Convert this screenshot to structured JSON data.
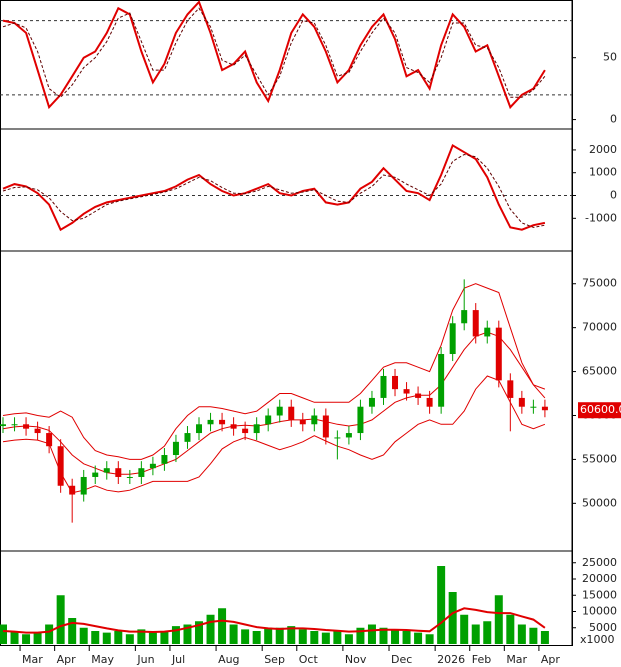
{
  "chart_data": [
    {
      "type": "line",
      "ylim": [
        -6,
        95
      ],
      "yticks": [
        0,
        50
      ],
      "levels": [
        20,
        80
      ],
      "series": [
        {
          "color": "#e00000",
          "values": [
            80,
            78,
            70,
            40,
            10,
            20,
            35,
            50,
            55,
            70,
            90,
            85,
            55,
            30,
            45,
            70,
            85,
            95,
            70,
            40,
            45,
            55,
            30,
            15,
            40,
            70,
            85,
            75,
            55,
            30,
            40,
            60,
            75,
            85,
            65,
            35,
            40,
            25,
            60,
            85,
            75,
            55,
            60,
            35,
            10,
            20,
            25,
            40
          ]
        },
        {
          "color": "#600000",
          "dash": true,
          "values": [
            75,
            78,
            74,
            55,
            25,
            18,
            28,
            42,
            50,
            63,
            82,
            86,
            63,
            40,
            40,
            62,
            80,
            90,
            75,
            48,
            44,
            52,
            36,
            20,
            35,
            62,
            80,
            78,
            60,
            35,
            38,
            55,
            70,
            82,
            70,
            42,
            38,
            30,
            50,
            78,
            78,
            60,
            58,
            42,
            18,
            18,
            24,
            35
          ]
        }
      ]
    },
    {
      "type": "line",
      "ylim": [
        -2390,
        2830
      ],
      "yticks": [
        -1000,
        0,
        1000,
        2000
      ],
      "levels": [
        0
      ],
      "series": [
        {
          "color": "#e00000",
          "values": [
            300,
            500,
            400,
            100,
            -400,
            -1500,
            -1200,
            -800,
            -500,
            -300,
            -200,
            -100,
            0,
            100,
            200,
            400,
            700,
            900,
            500,
            200,
            0,
            100,
            300,
            500,
            100,
            0,
            200,
            300,
            -300,
            -400,
            -300,
            300,
            600,
            1200,
            700,
            200,
            100,
            -200,
            900,
            2200,
            1900,
            1600,
            800,
            -400,
            -1400,
            -1500,
            -1300,
            -1200
          ]
        },
        {
          "color": "#600000",
          "dash": true,
          "values": [
            200,
            350,
            380,
            250,
            -100,
            -700,
            -1100,
            -1000,
            -700,
            -400,
            -250,
            -150,
            -50,
            50,
            150,
            300,
            550,
            800,
            650,
            350,
            100,
            80,
            200,
            400,
            250,
            100,
            150,
            250,
            0,
            -250,
            -300,
            100,
            400,
            900,
            800,
            500,
            250,
            0,
            500,
            1500,
            1800,
            1700,
            1200,
            400,
            -600,
            -1200,
            -1400,
            -1300
          ]
        }
      ]
    },
    {
      "type": "candlestick",
      "ylim": [
        44800,
        78500
      ],
      "yticks": [
        50000,
        55000,
        60000,
        65000,
        70000,
        75000
      ],
      "up_color": "#00a000",
      "down_color": "#e00000",
      "open": [
        58800,
        59000,
        59000,
        58500,
        58000,
        56500,
        52000,
        51000,
        53000,
        53500,
        54000,
        53000,
        53000,
        54000,
        54500,
        55500,
        57000,
        58000,
        59000,
        59500,
        59000,
        58500,
        58000,
        59000,
        60000,
        61000,
        59500,
        59000,
        60000,
        57500,
        57500,
        58000,
        61000,
        62000,
        64500,
        63000,
        62500,
        62000,
        61000,
        67000,
        70500,
        72000,
        69000,
        70000,
        64000,
        62000,
        61000,
        61000
      ],
      "high": [
        59800,
        59800,
        59800,
        59300,
        58800,
        57300,
        52800,
        53800,
        54300,
        54800,
        54800,
        53800,
        54800,
        55300,
        56300,
        57800,
        58800,
        59800,
        60300,
        60300,
        59800,
        59300,
        59800,
        60800,
        61800,
        61800,
        60300,
        60800,
        60800,
        58300,
        58800,
        61800,
        62800,
        65300,
        65300,
        63800,
        63300,
        62800,
        67800,
        71300,
        75500,
        72800,
        70800,
        70800,
        64800,
        62800,
        61800,
        61800
      ],
      "low": [
        58000,
        58200,
        57700,
        57200,
        55700,
        51200,
        47800,
        50200,
        52200,
        52700,
        52200,
        52200,
        52200,
        53200,
        53700,
        54700,
        56200,
        57200,
        58200,
        58200,
        57700,
        57200,
        57200,
        58200,
        59200,
        58700,
        58200,
        58200,
        56700,
        55000,
        56700,
        57200,
        60200,
        61200,
        62200,
        61700,
        61200,
        60200,
        60200,
        66200,
        69700,
        68200,
        68200,
        63200,
        58200,
        60200,
        60200,
        59800
      ],
      "close": [
        59000,
        59000,
        58500,
        58000,
        56500,
        52000,
        51000,
        53000,
        53500,
        54000,
        53000,
        53000,
        54000,
        54500,
        55500,
        57000,
        58000,
        59000,
        59500,
        59000,
        58500,
        58000,
        59000,
        60000,
        61000,
        59500,
        59000,
        60000,
        57500,
        57500,
        58000,
        61000,
        62000,
        64500,
        63000,
        62500,
        62000,
        61000,
        67000,
        70500,
        72000,
        69000,
        70000,
        64000,
        62000,
        61000,
        61000,
        60600
      ],
      "last_label": "60600.00",
      "series": [
        {
          "color": "#e00000",
          "values": [
            60000,
            60200,
            60300,
            60000,
            59800,
            60500,
            59800,
            57500,
            56000,
            55500,
            55300,
            55000,
            55000,
            55500,
            56500,
            58500,
            60000,
            61000,
            61000,
            60800,
            60500,
            60200,
            60500,
            61500,
            62500,
            62500,
            62000,
            61500,
            61500,
            61500,
            61500,
            62500,
            64000,
            65500,
            66000,
            66000,
            65500,
            65000,
            68000,
            72000,
            74500,
            75000,
            74500,
            74000,
            70000,
            66000,
            63500,
            63000
          ]
        },
        {
          "color": "#e00000",
          "values": [
            58500,
            58700,
            58800,
            58700,
            58300,
            57000,
            55500,
            54500,
            54000,
            53500,
            53300,
            53300,
            53500,
            54000,
            54500,
            55000,
            56000,
            57000,
            58000,
            58500,
            58800,
            58900,
            58800,
            59000,
            59300,
            59500,
            59500,
            59600,
            59300,
            59000,
            58800,
            59000,
            59500,
            60500,
            61500,
            62000,
            62300,
            62300,
            63500,
            65500,
            67500,
            69000,
            69500,
            69000,
            67500,
            65500,
            63500,
            62000
          ]
        },
        {
          "color": "#e00000",
          "values": [
            57000,
            57200,
            57300,
            57200,
            56800,
            53500,
            51200,
            51500,
            52000,
            51500,
            51300,
            51500,
            52000,
            52500,
            52500,
            52500,
            52500,
            53000,
            54500,
            56200,
            57000,
            57500,
            57100,
            56600,
            56100,
            56500,
            57000,
            57700,
            57100,
            56500,
            56100,
            55500,
            55000,
            55500,
            57000,
            58000,
            59000,
            59500,
            59000,
            59000,
            60500,
            63000,
            64500,
            64000,
            61500,
            59000,
            58500,
            59000
          ]
        }
      ]
    },
    {
      "type": "bar",
      "ylim": [
        0,
        28000
      ],
      "yticks": [
        5000,
        10000,
        15000,
        20000,
        25000
      ],
      "unit_label": "x1000",
      "color": "#00a000",
      "categories": [
        null,
        null,
        "Mar",
        null,
        null,
        "Apr",
        null,
        null,
        "May",
        null,
        null,
        null,
        "Jun",
        null,
        null,
        "Jul",
        null,
        null,
        null,
        "Aug",
        null,
        null,
        null,
        "Sep",
        null,
        null,
        "Oct",
        null,
        null,
        null,
        "Nov",
        null,
        null,
        null,
        "Dec",
        null,
        null,
        null,
        "2026",
        null,
        null,
        "Feb",
        null,
        null,
        "Mar",
        null,
        null,
        "Apr"
      ],
      "values": [
        6000,
        4000,
        3000,
        3500,
        6000,
        15000,
        8000,
        5000,
        4000,
        3500,
        4000,
        3000,
        4500,
        3500,
        4000,
        5500,
        6000,
        7000,
        9000,
        11000,
        6000,
        4500,
        4000,
        5000,
        5000,
        5500,
        4500,
        4000,
        3500,
        4000,
        3000,
        5000,
        6000,
        5000,
        4500,
        4000,
        3500,
        3000,
        24000,
        16000,
        9000,
        6000,
        7000,
        15000,
        9000,
        6000,
        5000,
        4000
      ],
      "series": [
        {
          "color": "#e00000",
          "values": [
            4000,
            3800,
            3500,
            3500,
            3800,
            5500,
            6500,
            6200,
            5500,
            4800,
            4200,
            3800,
            3800,
            3700,
            3800,
            4200,
            5000,
            5800,
            6800,
            7200,
            6800,
            6000,
            5200,
            4800,
            4600,
            4800,
            4800,
            4600,
            4300,
            4100,
            3800,
            3900,
            4200,
            4400,
            4400,
            4300,
            4100,
            3900,
            6500,
            9500,
            11000,
            10500,
            9800,
            9500,
            9500,
            8500,
            7500,
            5000
          ]
        }
      ]
    }
  ]
}
